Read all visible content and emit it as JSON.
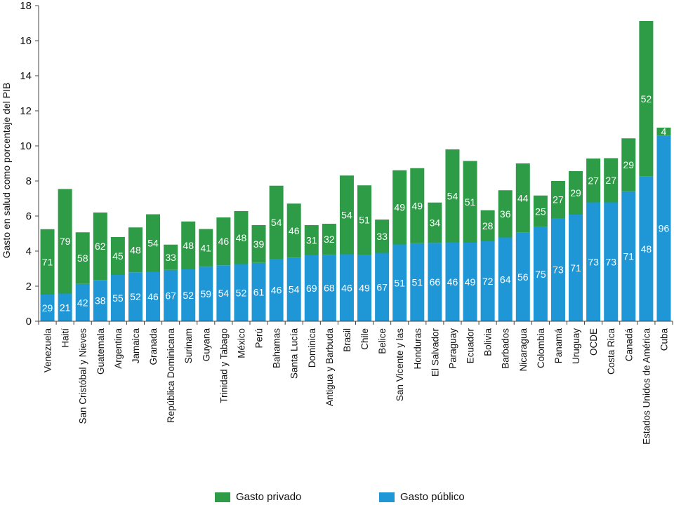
{
  "chart_data": {
    "type": "bar",
    "stacked": true,
    "ylabel": "Gasto en salud como porcentaje del PIB",
    "xlabel": "",
    "ylim": [
      0,
      18
    ],
    "yticks": [
      0,
      2,
      4,
      6,
      8,
      10,
      12,
      14,
      16,
      18
    ],
    "grid": false,
    "legend_position": "bottom",
    "categories": [
      "Venezuela",
      "Haití",
      "San Cristóbal y Nieves",
      "Guatemala",
      "Argentina",
      "Jamaica",
      "Granada",
      "República Dominicana",
      "Surinam",
      "Guyana",
      "Trinidad y Tabago",
      "México",
      "Perú",
      "Bahamas",
      "Santa Lucía",
      "Dominica",
      "Antigua y Barbuda",
      "Brasil",
      "Chile",
      "Belice",
      "San Vicente y las",
      "Honduras",
      "El Salvador",
      "Paraguay",
      "Ecuador",
      "Bolivia",
      "Barbados",
      "Nicaragua",
      "Colombia",
      "Panamá",
      "Uruguay",
      "OCDE",
      "Costa Rica",
      "Canadá",
      "Estados Unidos de América",
      "Cuba"
    ],
    "series": [
      {
        "name": "Gasto público",
        "color": "#1f96d6",
        "values": [
          1.52,
          1.58,
          2.13,
          2.35,
          2.64,
          2.79,
          2.82,
          2.93,
          2.96,
          3.11,
          3.19,
          3.26,
          3.33,
          3.56,
          3.63,
          3.78,
          3.79,
          3.82,
          3.8,
          3.9,
          4.38,
          4.45,
          4.47,
          4.5,
          4.48,
          4.56,
          4.78,
          5.05,
          5.37,
          5.88,
          6.08,
          6.78,
          6.78,
          7.41,
          8.25,
          10.59
        ],
        "labels": [
          "29",
          "21",
          "42",
          "38",
          "55",
          "52",
          "46",
          "67",
          "52",
          "59",
          "54",
          "52",
          "61",
          "46",
          "54",
          "69",
          "68",
          "46",
          "49",
          "67",
          "51",
          "51",
          "66",
          "46",
          "49",
          "72",
          "64",
          "56",
          "75",
          "73",
          "71",
          "73",
          "73",
          "71",
          "48",
          "96"
        ]
      },
      {
        "name": "Gasto privado",
        "color": "#2e9b47",
        "values": [
          3.73,
          5.96,
          2.94,
          3.85,
          2.16,
          2.56,
          3.28,
          1.44,
          2.73,
          2.15,
          2.73,
          3.02,
          2.15,
          4.17,
          3.08,
          1.7,
          1.77,
          4.49,
          3.95,
          1.9,
          4.23,
          4.28,
          2.3,
          5.3,
          4.66,
          1.77,
          2.69,
          3.95,
          1.8,
          2.12,
          2.48,
          2.5,
          2.52,
          3.02,
          8.87,
          0.45
        ],
        "labels": [
          "71",
          "79",
          "58",
          "62",
          "45",
          "48",
          "54",
          "33",
          "48",
          "41",
          "46",
          "48",
          "39",
          "54",
          "46",
          "31",
          "32",
          "54",
          "51",
          "33",
          "49",
          "49",
          "34",
          "54",
          "51",
          "28",
          "36",
          "44",
          "25",
          "27",
          "29",
          "27",
          "27",
          "29",
          "52",
          "4"
        ]
      }
    ]
  }
}
